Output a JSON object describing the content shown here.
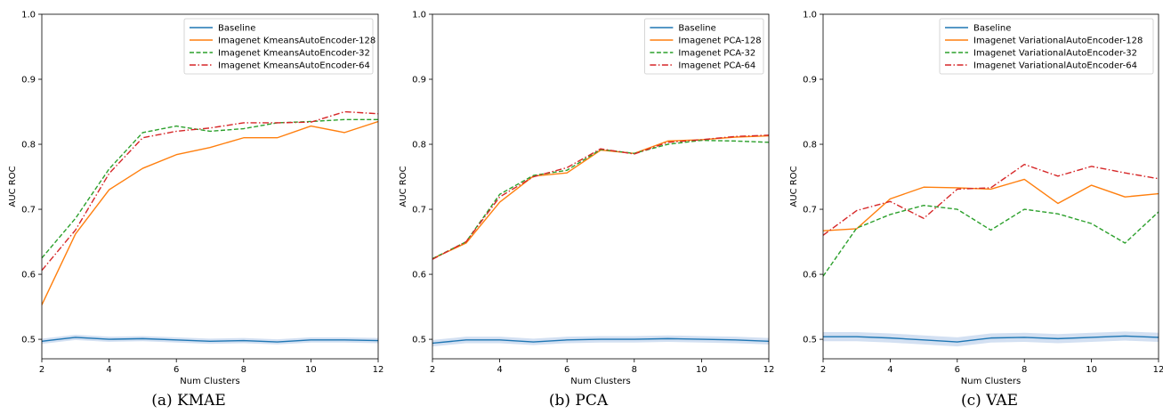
{
  "colors": {
    "baseline": "#1f77b4",
    "s128": "#ff7f0e",
    "s32": "#2ca02c",
    "s64": "#d62728",
    "band": "#aec7e8"
  },
  "chart_data": [
    {
      "type": "line",
      "caption": "(a) KMAE",
      "xlabel": "Num Clusters",
      "ylabel": "AUC ROC",
      "xlim": [
        2,
        12
      ],
      "ylim": [
        0.47,
        1.0
      ],
      "xticks": [
        2,
        4,
        6,
        8,
        10,
        12
      ],
      "yticks": [
        0.5,
        0.6,
        0.7,
        0.8,
        0.9,
        1.0
      ],
      "ytick_labels": [
        "0.5",
        "0.6",
        "0.7",
        "0.8",
        "0.9",
        "1.0"
      ],
      "legend_position": "top-right",
      "x": [
        2,
        3,
        4,
        5,
        6,
        7,
        8,
        9,
        10,
        11,
        12
      ],
      "series": [
        {
          "name": "Baseline",
          "style": "solid",
          "color_key": "baseline",
          "band": 0.004,
          "values": [
            0.497,
            0.503,
            0.5,
            0.501,
            0.499,
            0.497,
            0.498,
            0.496,
            0.499,
            0.499,
            0.498
          ]
        },
        {
          "name": "Imagenet KmeansAutoEncoder-128",
          "style": "solid",
          "color_key": "s128",
          "values": [
            0.553,
            0.662,
            0.73,
            0.763,
            0.784,
            0.795,
            0.81,
            0.81,
            0.828,
            0.818,
            0.835
          ]
        },
        {
          "name": "Imagenet KmeansAutoEncoder-32",
          "style": "dashed",
          "color_key": "s32",
          "values": [
            0.625,
            0.686,
            0.762,
            0.818,
            0.828,
            0.82,
            0.824,
            0.833,
            0.835,
            0.838,
            0.838
          ]
        },
        {
          "name": "Imagenet KmeansAutoEncoder-64",
          "style": "dashdot",
          "color_key": "s64",
          "values": [
            0.606,
            0.668,
            0.755,
            0.81,
            0.82,
            0.825,
            0.833,
            0.833,
            0.834,
            0.85,
            0.847
          ]
        }
      ]
    },
    {
      "type": "line",
      "caption": "(b) PCA",
      "xlabel": "Num Clusters",
      "ylabel": "AUC ROC",
      "xlim": [
        2,
        12
      ],
      "ylim": [
        0.47,
        1.0
      ],
      "xticks": [
        2,
        4,
        6,
        8,
        10,
        12
      ],
      "yticks": [
        0.5,
        0.6,
        0.7,
        0.8,
        0.9,
        1.0
      ],
      "ytick_labels": [
        "0.5",
        "0.6",
        "0.7",
        "0.8",
        "0.9",
        "1.0"
      ],
      "legend_position": "top-right",
      "x": [
        2,
        3,
        4,
        5,
        6,
        7,
        8,
        9,
        10,
        11,
        12
      ],
      "series": [
        {
          "name": "Baseline",
          "style": "solid",
          "color_key": "baseline",
          "band": 0.005,
          "values": [
            0.494,
            0.499,
            0.499,
            0.496,
            0.499,
            0.5,
            0.5,
            0.501,
            0.5,
            0.499,
            0.497
          ]
        },
        {
          "name": "Imagenet PCA-128",
          "style": "solid",
          "color_key": "s128",
          "values": [
            0.624,
            0.648,
            0.711,
            0.751,
            0.756,
            0.791,
            0.786,
            0.805,
            0.807,
            0.811,
            0.813
          ]
        },
        {
          "name": "Imagenet PCA-32",
          "style": "dashed",
          "color_key": "s32",
          "values": [
            0.624,
            0.65,
            0.723,
            0.752,
            0.76,
            0.792,
            0.786,
            0.8,
            0.806,
            0.805,
            0.803
          ]
        },
        {
          "name": "Imagenet PCA-64",
          "style": "dashdot",
          "color_key": "s64",
          "values": [
            0.623,
            0.65,
            0.719,
            0.75,
            0.764,
            0.793,
            0.785,
            0.803,
            0.807,
            0.812,
            0.814
          ]
        }
      ]
    },
    {
      "type": "line",
      "caption": "(c) VAE",
      "xlabel": "Num Clusters",
      "ylabel": "AUC ROC",
      "xlim": [
        2,
        12
      ],
      "ylim": [
        0.47,
        1.0
      ],
      "xticks": [
        2,
        4,
        6,
        8,
        10,
        12
      ],
      "yticks": [
        0.5,
        0.6,
        0.7,
        0.8,
        0.9,
        1.0
      ],
      "ytick_labels": [
        "0.5",
        "0.6",
        "0.7",
        "0.8",
        "0.9",
        "1.0"
      ],
      "legend_position": "top-right",
      "x": [
        2,
        3,
        4,
        5,
        6,
        7,
        8,
        9,
        10,
        11,
        12
      ],
      "series": [
        {
          "name": "Baseline",
          "style": "solid",
          "color_key": "baseline",
          "band": 0.007,
          "values": [
            0.504,
            0.504,
            0.502,
            0.499,
            0.496,
            0.502,
            0.503,
            0.501,
            0.503,
            0.505,
            0.503
          ]
        },
        {
          "name": "Imagenet VariationalAutoEncoder-128",
          "style": "solid",
          "color_key": "s128",
          "values": [
            0.667,
            0.67,
            0.716,
            0.734,
            0.733,
            0.731,
            0.746,
            0.709,
            0.737,
            0.719,
            0.724
          ]
        },
        {
          "name": "Imagenet VariationalAutoEncoder-32",
          "style": "dashed",
          "color_key": "s32",
          "values": [
            0.597,
            0.671,
            0.692,
            0.706,
            0.7,
            0.668,
            0.7,
            0.693,
            0.678,
            0.648,
            0.696
          ]
        },
        {
          "name": "Imagenet VariationalAutoEncoder-64",
          "style": "dashdot",
          "color_key": "s64",
          "values": [
            0.66,
            0.698,
            0.712,
            0.686,
            0.731,
            0.733,
            0.769,
            0.751,
            0.766,
            0.756,
            0.747
          ]
        }
      ]
    }
  ]
}
